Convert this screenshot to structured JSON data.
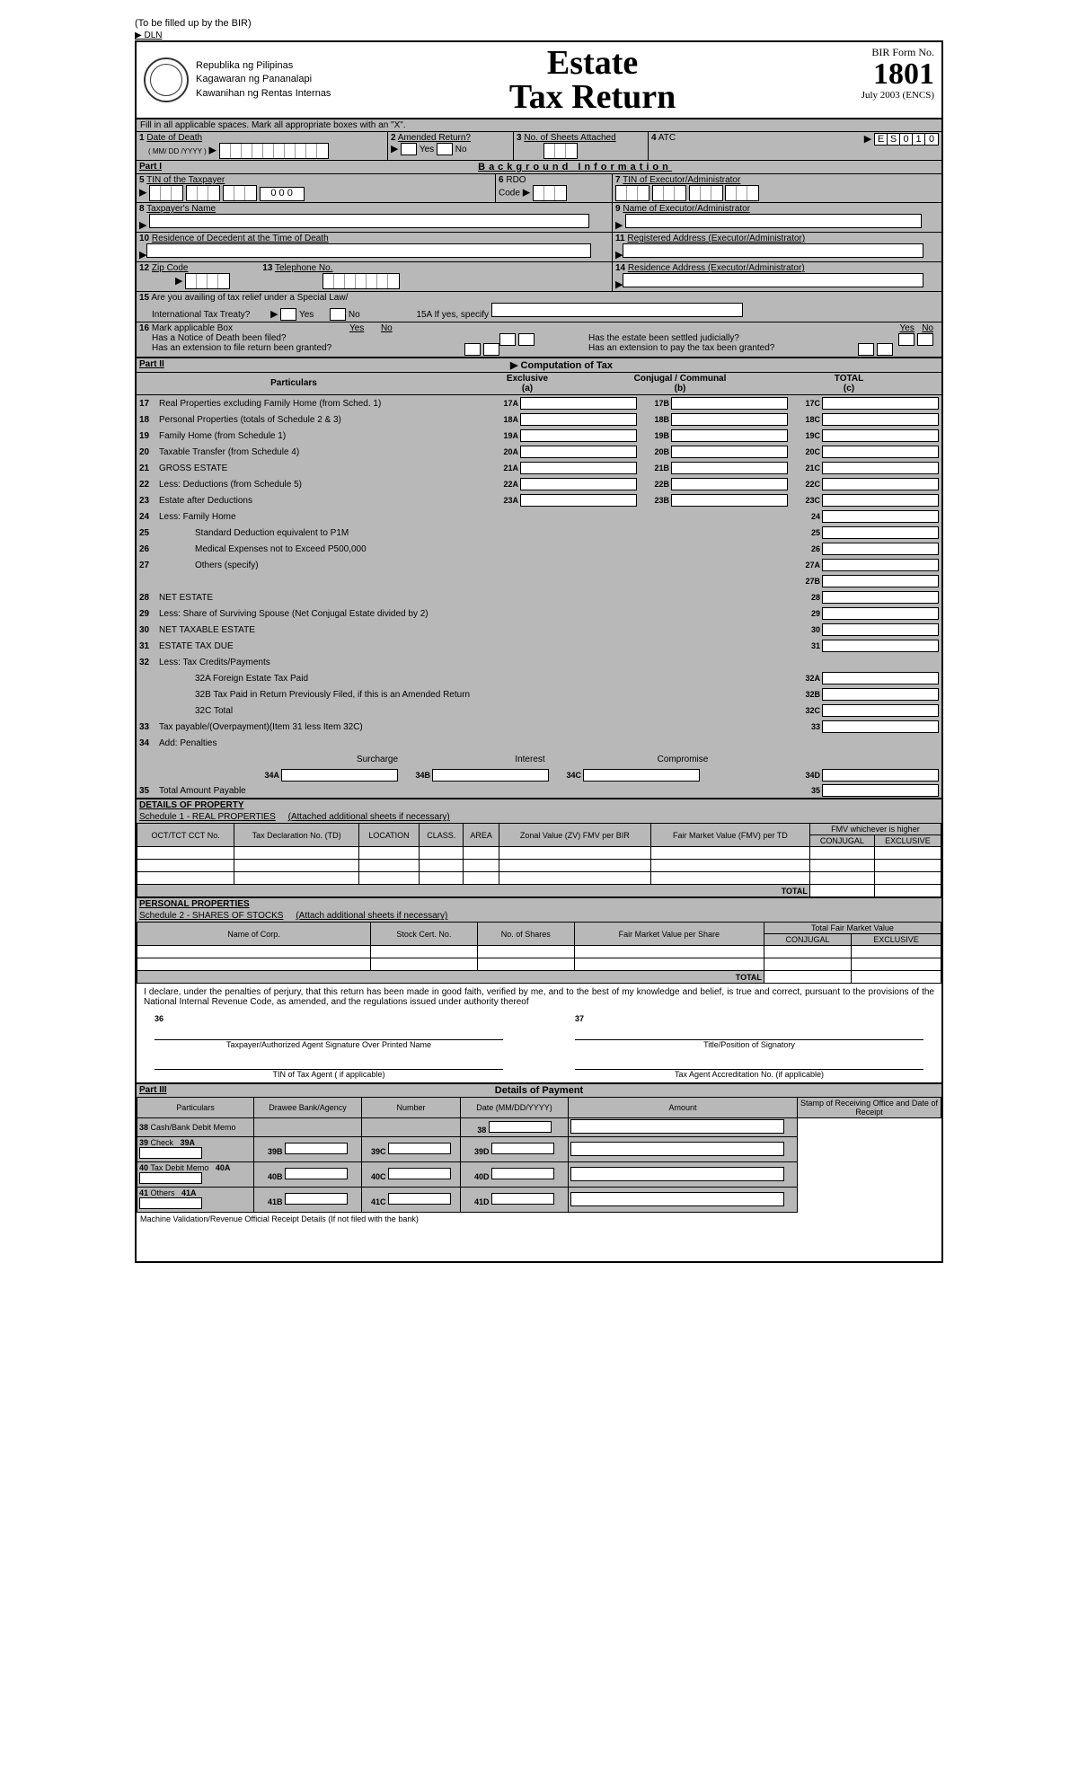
{
  "top_note": "(To be filled up by the BIR)",
  "dln": "▶ DLN",
  "republic": {
    "line1": "Republika ng Pilipinas",
    "line2": "Kagawaran ng Pananalapi",
    "line3": "Kawanihan ng Rentas Internas"
  },
  "title": {
    "line1": "Estate",
    "line2": "Tax Return"
  },
  "form_no": {
    "label": "BIR Form No.",
    "number": "1801",
    "date": "July 2003 (ENCS)"
  },
  "instr_fill": "Fill in all applicable spaces. Mark all appropriate boxes with an \"X\".",
  "row1": {
    "f1_label": "Date of Death",
    "f1_sub": "( MM/ DD /YYYY )",
    "f2_label": "Amended Return?",
    "f2_yes": "Yes",
    "f2_no": "No",
    "f3_label": "No. of Sheets Attached",
    "f4_label": "ATC",
    "atc_value": "ES010"
  },
  "part1": {
    "label": "Part I",
    "title": "Background Information"
  },
  "f5_label": "TIN of the Taxpayer",
  "f5_sep": "0 0 0",
  "f6_label": "RDO",
  "f6_sub": "Code",
  "f7_label": "TIN of Executor/Administrator",
  "f8_label": "Taxpayer's Name",
  "f9_label": "Name of Executor/Administrator",
  "f10_label": "Residence of Decedent at the Time of Death",
  "f11_label": "Registered Address (Executor/Administrator)",
  "f12_label": "Zip Code",
  "f13_label": "Telephone No.",
  "f14_label": "Residence Address (Executor/Administrator)",
  "f15_label": "Are you availing of tax relief under a Special Law/",
  "f15_sub": "International Tax Treaty?",
  "f15_yes": "Yes",
  "f15_no": "No",
  "f15a": "15A  If yes, specify",
  "f16_label": "Mark applicable Box",
  "f16_q1": "Has a Notice of Death been filed?",
  "f16_q2": "Has an extension to file return been granted?",
  "f16_q3": "Has the estate been settled judicially?",
  "f16_q4": "Has an extension to pay the tax been granted?",
  "yes": "Yes",
  "no": "No",
  "part2": {
    "label": "Part II",
    "title": "Computation of Tax"
  },
  "comp_hdr": {
    "particulars": "Particulars",
    "exclusive": "Exclusive",
    "exclusive_sub": "(a)",
    "conjugal": "Conjugal / Communal",
    "conjugal_sub": "(b)",
    "total": "TOTAL",
    "total_sub": "(c)"
  },
  "comp": [
    {
      "n": "17",
      "label": "Real Properties excluding Family Home (from Sched. 1)",
      "a": "17A",
      "b": "17B",
      "c": "17C"
    },
    {
      "n": "18",
      "label": "Personal Properties (totals of Schedule 2 & 3)",
      "a": "18A",
      "b": "18B",
      "c": "18C"
    },
    {
      "n": "19",
      "label": "Family Home (from Schedule 1)",
      "a": "19A",
      "b": "19B",
      "c": "19C"
    },
    {
      "n": "20",
      "label": "Taxable Transfer (from Schedule 4)",
      "a": "20A",
      "b": "20B",
      "c": "20C"
    },
    {
      "n": "21",
      "label": "GROSS ESTATE",
      "a": "21A",
      "b": "21B",
      "c": "21C"
    },
    {
      "n": "22",
      "label": "Less:  Deductions (from Schedule 5)",
      "a": "22A",
      "b": "22B",
      "c": "22C"
    },
    {
      "n": "23",
      "label": "Estate after Deductions",
      "a": "23A",
      "b": "23B",
      "c": "23C"
    },
    {
      "n": "24",
      "label": "Less:   Family Home",
      "c": "24"
    },
    {
      "n": "25",
      "label": "Standard Deduction equivalent to P1M",
      "indent": true,
      "c": "25"
    },
    {
      "n": "26",
      "label": "Medical Expenses not to Exceed P500,000",
      "indent": true,
      "c": "26"
    },
    {
      "n": "27",
      "label": "Others (specify)",
      "indent": true,
      "c": "27A",
      "extra": "27B"
    },
    {
      "n": "28",
      "label": "NET ESTATE",
      "c": "28"
    },
    {
      "n": "29",
      "label": "Less:  Share of Surviving Spouse (Net Conjugal Estate divided by 2)",
      "c": "29"
    },
    {
      "n": "30",
      "label": "NET TAXABLE ESTATE",
      "c": "30"
    },
    {
      "n": "31",
      "label": "ESTATE TAX DUE",
      "c": "31"
    },
    {
      "n": "32",
      "label": "Less:  Tax Credits/Payments"
    },
    {
      "n": "",
      "label": "32A     Foreign Estate Tax Paid",
      "indent": true,
      "c": "32A"
    },
    {
      "n": "",
      "label": "32B     Tax Paid in Return Previously Filed, if this is an Amended Return",
      "indent": true,
      "c": "32B"
    },
    {
      "n": "",
      "label": "32C     Total",
      "indent": true,
      "c": "32C"
    },
    {
      "n": "33",
      "label": "Tax payable/(Overpayment)(Item 31 less Item 32C)",
      "c": "33"
    },
    {
      "n": "34",
      "label": "Add:  Penalties"
    }
  ],
  "penalties": {
    "surcharge": "Surcharge",
    "interest": "Interest",
    "compromise": "Compromise",
    "a": "34A",
    "b": "34B",
    "c": "34C",
    "d": "34D"
  },
  "f35": {
    "n": "35",
    "label": "Total Amount Payable",
    "c": "35"
  },
  "details_property": "DETAILS OF PROPERTY",
  "sched1": {
    "title": "Schedule 1 - REAL PROPERTIES",
    "note": "(Attached additional sheets if necessary)",
    "cols": [
      "OCT/TCT CCT No.",
      "Tax Declaration No. (TD)",
      "LOCATION",
      "CLASS.",
      "AREA",
      "Zonal Value (ZV) FMV per BIR",
      "Fair Market Value (FMV) per TD",
      "FMV whichever is higher",
      "CONJUGAL",
      "EXCLUSIVE"
    ],
    "total": "TOTAL"
  },
  "personal_prop": "PERSONAL PROPERTIES",
  "sched2": {
    "title": "Schedule 2 - SHARES OF STOCKS",
    "note": "(Attach additional sheets if necessary)",
    "cols": [
      "Name of Corp.",
      "Stock Cert. No.",
      "No. of Shares",
      "Fair Market Value per Share",
      "Total Fair Market Value",
      "CONJUGAL",
      "EXCLUSIVE"
    ],
    "total": "TOTAL"
  },
  "declaration": "I declare, under the penalties of perjury, that this return has been made in good faith, verified by me, and to the best of my knowledge and belief, is true  and correct, pursuant to the provisions of the National Internal Revenue Code, as amended, and the regulations issued under authority thereof",
  "sig": {
    "n36": "36",
    "n37": "37",
    "s1": "Taxpayer/Authorized Agent Signature Over Printed Name",
    "s2": "Title/Position of Signatory",
    "s3": "TIN of Tax Agent ( if applicable)",
    "s4": "Tax Agent Accreditation No. (if applicable)"
  },
  "part3": {
    "label": "Part III",
    "title": "Details of Payment"
  },
  "pay_hdr": [
    "Particulars",
    "Drawee Bank/Agency",
    "Number",
    "Date (MM/DD/YYYY)",
    "Amount",
    "Stamp of Receiving Office and Date of Receipt"
  ],
  "pay_rows": [
    {
      "n": "38",
      "label": "Cash/Bank Debit Memo",
      "d": "38"
    },
    {
      "n": "39",
      "label": "Check",
      "a": "39A",
      "b": "39B",
      "c": "39C",
      "d": "39D"
    },
    {
      "n": "40",
      "label": "Tax Debit Memo",
      "a": "40A",
      "b": "40B",
      "c": "40C",
      "d": "40D"
    },
    {
      "n": "41",
      "label": "Others",
      "a": "41A",
      "b": "41B",
      "c": "41C",
      "d": "41D"
    }
  ],
  "machine_valid": "Machine Validation/Revenue Official Receipt Details (If not filed with the bank)"
}
